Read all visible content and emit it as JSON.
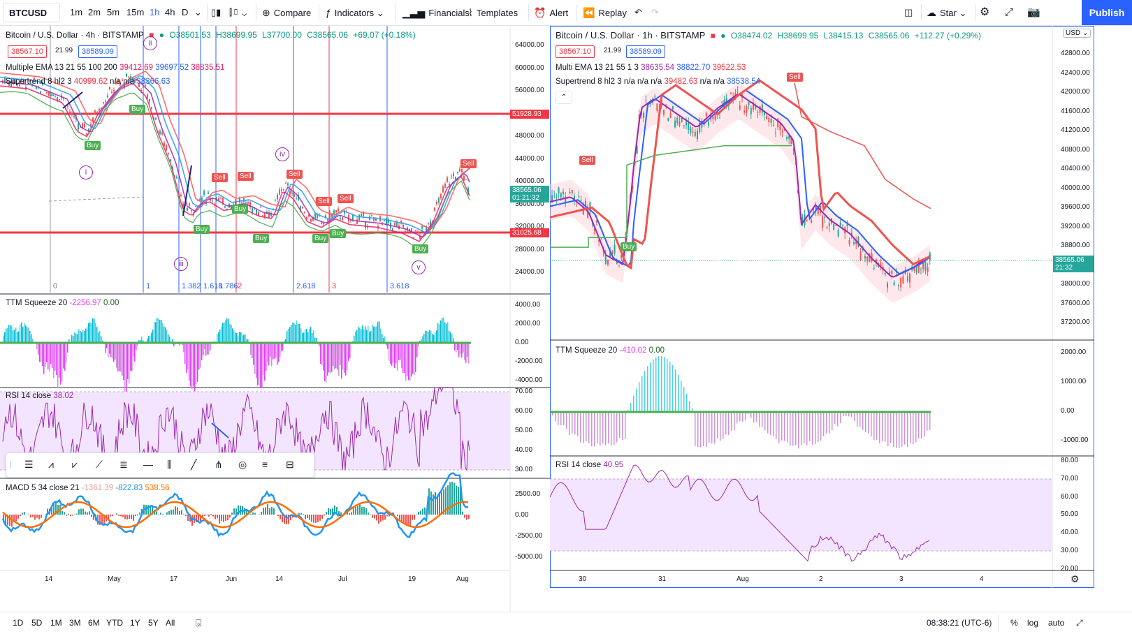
{
  "topbar": {
    "symbol": "BTCUSD",
    "intervals": [
      "1m",
      "2m",
      "5m",
      "15m",
      "1h",
      "4h",
      "D"
    ],
    "compare": "Compare",
    "indicators": "Indicators",
    "financials": "Financials",
    "templates": "Templates",
    "alert": "Alert",
    "replay": "Replay",
    "star": "Star",
    "publish": "Publish"
  },
  "left_chart": {
    "title": "Bitcoin / U.S. Dollar · 4h · BITSTAMP",
    "ohlc": {
      "o": "O38501.53",
      "h": "H38699.95",
      "l": "L37700.00",
      "c": "C38565.06",
      "chg": "+69.07 (+0.18%)"
    },
    "bid": "38567.10",
    "spread": "21.99",
    "ask": "38589.09",
    "ema_label": "Multiple EMA 13 21 55 100 200",
    "ema_values": [
      "39412.69",
      "39697.52",
      "38835.51"
    ],
    "supertrend_label": "Supertrend 8 hl2 3",
    "supertrend_values": [
      "40999.62",
      "n/a",
      "n/a",
      "38366.63"
    ],
    "price_axis": [
      "64000.00",
      "60000.00",
      "56000.00",
      "52000.00",
      "48000.00",
      "44000.00",
      "40000.00",
      "36000.00",
      "32000.00",
      "28000.00",
      "24000.00"
    ],
    "level_high": "51928.93",
    "level_low": "31025.68",
    "last_price": "38565.06",
    "countdown": "01:21:32",
    "fib_labels": [
      "0",
      "1",
      "1.382",
      "1.618",
      "1.786",
      "2",
      "2.618",
      "3",
      "3.618"
    ],
    "time_axis": [
      "14",
      "May",
      "17",
      "Jun",
      "14",
      "Jul",
      "19",
      "Aug"
    ],
    "wave_labels": [
      "i",
      "ii",
      "iii",
      "iv",
      "v"
    ],
    "signals": {
      "buy": "Buy",
      "sell": "Sell"
    },
    "ttm": {
      "label": "TTM Squeeze 20",
      "v1": "-2256.97",
      "v2": "0.00",
      "axis": [
        "4000.00",
        "2000.00",
        "0.00",
        "-2000.00",
        "-4000.00"
      ]
    },
    "rsi": {
      "label": "RSI 14 close",
      "value": "38.02",
      "axis": [
        "70.00",
        "60.00",
        "50.00",
        "40.00",
        "30.00"
      ]
    },
    "macd": {
      "label": "MACD 5 34 close 21",
      "v1": "-1361.39",
      "v2": "-822.83",
      "v3": "538.56",
      "axis": [
        "2500.00",
        "0.00",
        "-2500.00",
        "-5000.00"
      ]
    }
  },
  "right_chart": {
    "title": "Bitcoin / U.S. Dollar · 1h · BITSTAMP",
    "ohlc": {
      "o": "O38474.02",
      "h": "H38699.95",
      "l": "L38415.13",
      "c": "C38565.06",
      "chg": "+112.27 (+0.29%)"
    },
    "bid": "38567.10",
    "spread": "21.99",
    "ask": "38589.09",
    "ema_label": "Multi EMA 13 21 55 1 3",
    "ema_values": [
      "38635.54",
      "38822.70",
      "39522.53"
    ],
    "supertrend_label": "Supertrend 8 hl2 3",
    "supertrend_values": [
      "n/a",
      "n/a",
      "n/a",
      "39482.63",
      "n/a",
      "n/a",
      "38538.54"
    ],
    "currency": "USD",
    "price_axis": [
      "42800.00",
      "42400.00",
      "42000.00",
      "41600.00",
      "41200.00",
      "40800.00",
      "40400.00",
      "40000.00",
      "39600.00",
      "39200.00",
      "38800.00",
      "38400.00",
      "38000.00",
      "37600.00",
      "37200.00"
    ],
    "last_price": "38565.06",
    "countdown": "21:32",
    "time_axis": [
      "30",
      "31",
      "Aug",
      "2",
      "3",
      "4"
    ],
    "signals": {
      "buy": "Buy",
      "sell": "Sell"
    },
    "ttm": {
      "label": "TTM Squeeze 20",
      "v1": "-410.02",
      "v2": "0.00",
      "axis": [
        "2000.00",
        "1000.00",
        "0.00",
        "-1000.00"
      ]
    },
    "rsi": {
      "label": "RSI 14 close",
      "value": "40.95",
      "axis": [
        "80.00",
        "70.00",
        "60.00",
        "50.00",
        "40.00",
        "30.00",
        "20.00"
      ]
    }
  },
  "bottombar": {
    "ranges": [
      "1D",
      "5D",
      "1M",
      "3M",
      "6M",
      "YTD",
      "1Y",
      "5Y",
      "All"
    ],
    "time": "08:38:21 (UTC-6)",
    "percent": "%",
    "log": "log",
    "auto": "auto"
  },
  "colors": {
    "accent": "#2962ff",
    "red": "#f23645",
    "green": "#089981",
    "buy": "#4caf50",
    "sell": "#ef5350",
    "rsi_fill": "#f3e5ff",
    "purple": "#9c27b0"
  }
}
